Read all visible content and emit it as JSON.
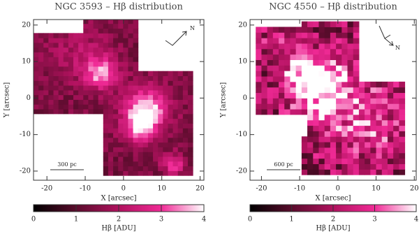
{
  "chart_data": [
    {
      "type": "image",
      "title": "NGC 3593 – Hβ distribution",
      "xlabel": "X [arcsec]",
      "ylabel": "Y [arcsec]",
      "xlim": [
        -23.5,
        21
      ],
      "ylim": [
        -22.5,
        21.5
      ],
      "xticks": [
        -20,
        -10,
        0,
        10,
        20
      ],
      "yticks": [
        -20,
        -10,
        0,
        10,
        20
      ],
      "scale_bar": "300 pc",
      "compass": "N",
      "colorbar": {
        "label": "Hβ [ADU]",
        "lim": [
          0,
          4
        ],
        "ticks": [
          0,
          1,
          2,
          3,
          4
        ]
      }
    },
    {
      "type": "image",
      "title": "NGC 4550 – Hβ distribution",
      "xlabel": "X [arcsec]",
      "ylabel": "Y [arcsec]",
      "xlim": [
        -23,
        20.5
      ],
      "ylim": [
        -22.5,
        21.5
      ],
      "xticks": [
        -20,
        -10,
        0,
        10,
        20
      ],
      "yticks": [
        -20,
        -10,
        0,
        10,
        20
      ],
      "scale_bar": "600 pc",
      "compass": "N",
      "colorbar": {
        "label": "Hβ [ADU]",
        "lim": [
          0,
          4
        ],
        "ticks": [
          0,
          1,
          2,
          3,
          4
        ]
      }
    }
  ]
}
